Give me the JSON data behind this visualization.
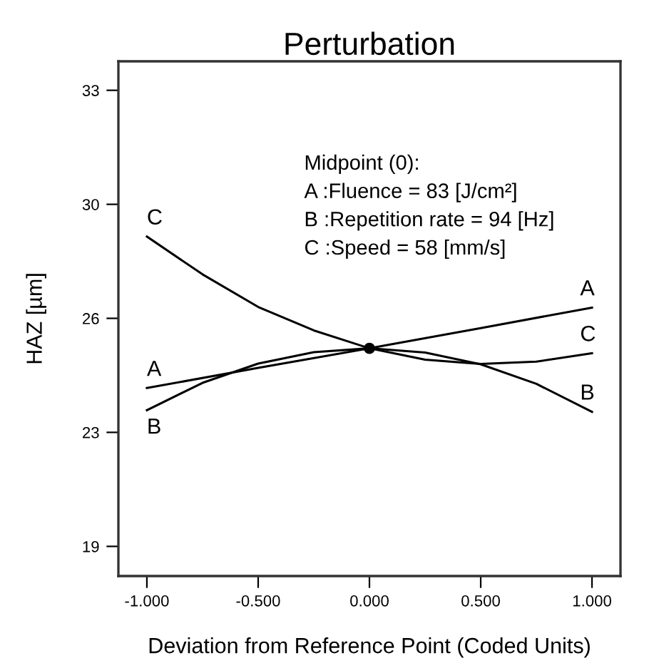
{
  "chart_data": {
    "type": "line",
    "title": "Perturbation",
    "xlabel": "Deviation from Reference Point (Coded Units)",
    "ylabel": "HAZ [µm]",
    "xlim": [
      -1.128,
      1.128
    ],
    "ylim": [
      18.09,
      33.89
    ],
    "xticks": [
      {
        "value": -1,
        "label": "-1.000"
      },
      {
        "value": -0.5,
        "label": "-0.500"
      },
      {
        "value": 0,
        "label": "0.000"
      },
      {
        "value": 0.5,
        "label": "0.500"
      },
      {
        "value": 1,
        "label": "1.000"
      }
    ],
    "yticks": [
      {
        "value": 19,
        "label": "19"
      },
      {
        "value": 22.5,
        "label": "23"
      },
      {
        "value": 26,
        "label": "26"
      },
      {
        "value": 29.5,
        "label": "30"
      },
      {
        "value": 33,
        "label": "33"
      }
    ],
    "grid": false,
    "legend": false,
    "marker": "none",
    "line_style": "solid",
    "series": [
      {
        "name": "A",
        "color": "#000000",
        "x": [
          -1,
          -0.5,
          0,
          0.5,
          1
        ],
        "values": [
          23.86,
          24.48,
          25.08,
          25.7,
          26.33
        ]
      },
      {
        "name": "B",
        "color": "#000000",
        "x": [
          -1,
          -0.75,
          -0.5,
          -0.25,
          0,
          0.25,
          0.5,
          0.75,
          1
        ],
        "values": [
          23.18,
          24.02,
          24.61,
          24.96,
          25.08,
          24.95,
          24.59,
          23.99,
          23.13
        ]
      },
      {
        "name": "C",
        "color": "#000000",
        "x": [
          -1,
          -0.75,
          -0.5,
          -0.25,
          0,
          0.25,
          0.5,
          0.75,
          1
        ],
        "values": [
          28.51,
          27.35,
          26.35,
          25.63,
          25.08,
          24.73,
          24.6,
          24.67,
          24.93
        ]
      },
      {
        "type": "scatter",
        "marker": "circle",
        "color": "#000000",
        "x": [
          0
        ],
        "values": [
          25.08
        ]
      }
    ],
    "annotations": [
      "Midpoint (0):",
      "A :Fluence = 83 [J/cm²]",
      "B :Repetition rate = 94 [Hz]",
      "C :Speed = 58 [mm/s]"
    ]
  }
}
